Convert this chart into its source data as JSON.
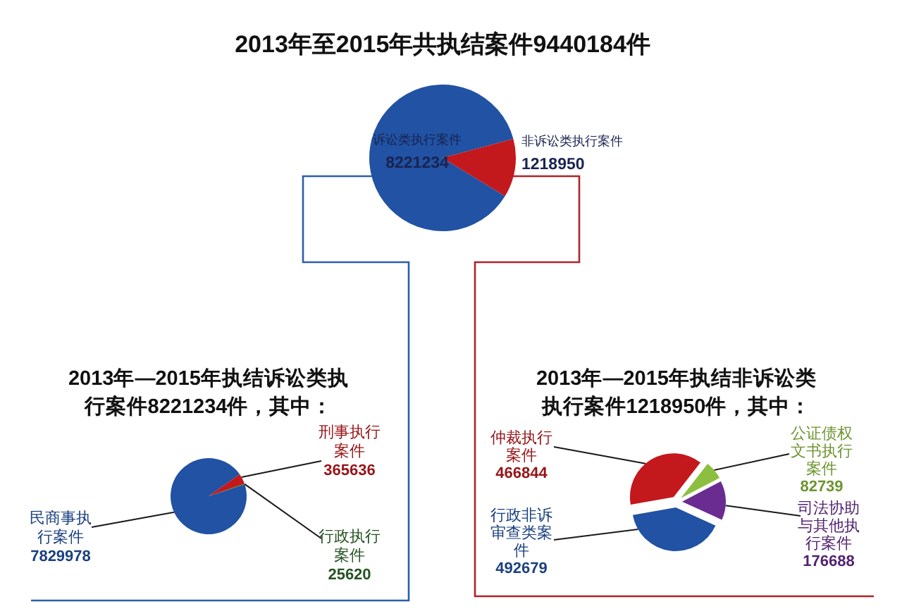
{
  "chart_data": [
    {
      "type": "pie",
      "title": "2013年至2015年共执结案件9440184件",
      "categories": [
        "诉讼类执行案件",
        "非诉讼类执行案件"
      ],
      "values": [
        8221234,
        1218950
      ],
      "colors": [
        "#2152a3",
        "#c3181c"
      ],
      "data_labels": true
    },
    {
      "type": "pie",
      "title": "2013年—2015年执结诉讼类执行案件8221234件，其中：",
      "categories": [
        "民商事执行案件",
        "刑事执行案件",
        "行政执行案件"
      ],
      "values": [
        7829978,
        365636,
        25620
      ],
      "colors": [
        "#2152a3",
        "#c3181c",
        "#2e6b2a"
      ],
      "data_labels": true
    },
    {
      "type": "pie",
      "title": "2013年—2015年执结非诉讼类执行案件1218950件，其中：",
      "categories": [
        "仲裁执行案件",
        "公证债权文书执行案件",
        "司法协助与其他执行案件",
        "行政非诉审查类案件"
      ],
      "values": [
        466844,
        82739,
        176688,
        492679
      ],
      "colors": [
        "#c3181c",
        "#8cbf3f",
        "#6a2c91",
        "#2152a3"
      ],
      "data_labels": true
    }
  ]
}
